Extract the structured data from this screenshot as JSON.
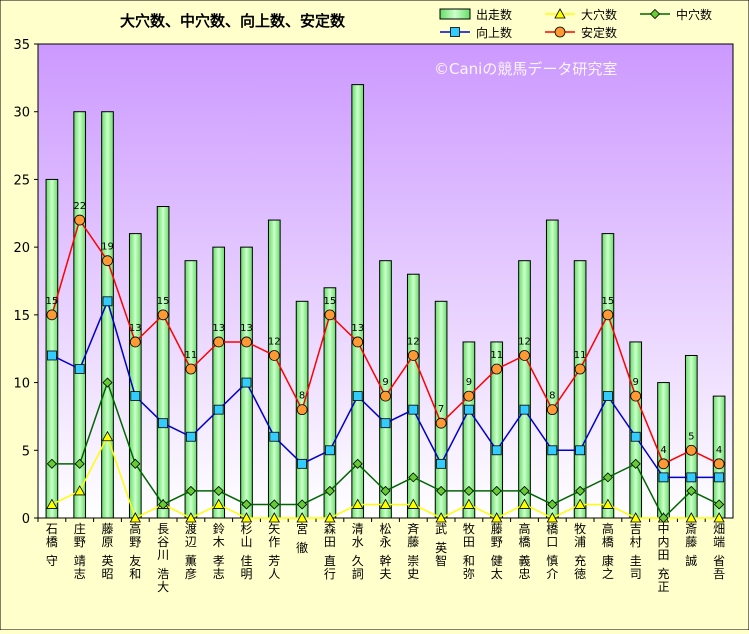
{
  "chart_data": {
    "type": "bar",
    "title": "大穴数、中穴数、向上数、安定数",
    "watermark": "©Caniの競馬データ研究室",
    "categories": [
      "石橋 守",
      "庄野 靖志",
      "藤原 英昭",
      "高野 友和",
      "長谷川 浩大",
      "渡辺 薫彦",
      "鈴木 孝志",
      "杉山 佳明",
      "矢作 芳人",
      "宮 徹",
      "森田 直行",
      "清水 久詞",
      "松永 幹夫",
      "斉藤 崇史",
      "武 英智",
      "牧田 和弥",
      "藤野 健太",
      "高橋 義忠",
      "橋口 慎介",
      "牧浦 充徳",
      "高橋 康之",
      "吉村 圭司",
      "中内田 充正",
      "斎藤 誠",
      "畑端 省吾"
    ],
    "ylim": [
      0,
      35
    ],
    "yticks": [
      0,
      5,
      10,
      15,
      20,
      25,
      30,
      35
    ],
    "grid": false,
    "legend_position": "top-right",
    "series": [
      {
        "name": "出走数",
        "kind": "bar",
        "color": "#99ff99",
        "values": [
          25,
          30,
          30,
          21,
          23,
          19,
          20,
          20,
          22,
          16,
          17,
          32,
          19,
          18,
          16,
          13,
          13,
          19,
          22,
          19,
          21,
          13,
          10,
          12,
          9
        ]
      },
      {
        "name": "大穴数",
        "kind": "line",
        "color": "#ffff00",
        "marker": "triangle",
        "values": [
          1,
          2,
          6,
          0,
          1,
          0,
          1,
          0,
          0,
          0,
          0,
          1,
          1,
          1,
          0,
          1,
          0,
          1,
          0,
          1,
          1,
          0,
          0,
          0,
          0
        ]
      },
      {
        "name": "中穴数",
        "kind": "line",
        "color": "#006600",
        "marker": "diamond",
        "values": [
          4,
          4,
          10,
          4,
          1,
          2,
          2,
          1,
          1,
          1,
          2,
          4,
          2,
          3,
          2,
          2,
          2,
          2,
          1,
          2,
          3,
          4,
          0,
          2,
          1
        ]
      },
      {
        "name": "向上数",
        "kind": "line",
        "color": "#0000cc",
        "marker": "square",
        "values": [
          12,
          11,
          16,
          9,
          7,
          6,
          8,
          10,
          6,
          4,
          5,
          9,
          7,
          8,
          4,
          8,
          5,
          8,
          5,
          5,
          9,
          6,
          3,
          3,
          3
        ]
      },
      {
        "name": "安定数",
        "kind": "line",
        "color": "#ff0000",
        "marker": "circle",
        "labels": true,
        "values": [
          15,
          22,
          19,
          13,
          15,
          11,
          13,
          13,
          12,
          8,
          15,
          13,
          9,
          12,
          7,
          9,
          11,
          12,
          8,
          11,
          15,
          9,
          4,
          5,
          4
        ]
      }
    ]
  }
}
